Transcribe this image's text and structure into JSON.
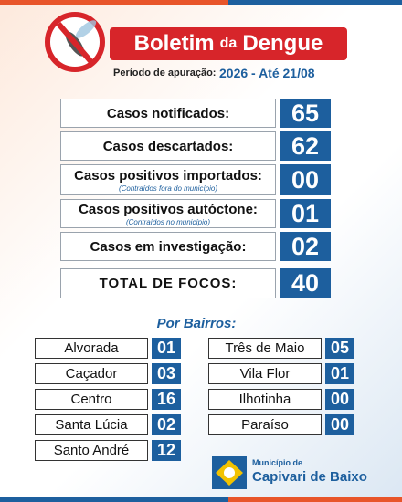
{
  "header": {
    "title_main": "Boletim",
    "title_connector": "da",
    "title_end": "Dengue",
    "period_label": "Período de apuração:",
    "period_value": "2026 - Até 21/08"
  },
  "summary": [
    {
      "label": "Casos notificados:",
      "value": "65"
    },
    {
      "label": "Casos descartados:",
      "value": "62"
    },
    {
      "label": "Casos positivos importados:",
      "note": "(Contraídos fora do município)",
      "value": "00"
    },
    {
      "label": "Casos positivos autóctone:",
      "note": "(Contraídos no município)",
      "value": "01"
    },
    {
      "label": "Casos em investigação:",
      "value": "02"
    },
    {
      "label": "TOTAL DE FOCOS:",
      "value": "40"
    }
  ],
  "neighborhoods_title": "Por Bairros:",
  "neighborhoods_left": [
    {
      "label": "Alvorada",
      "value": "01"
    },
    {
      "label": "Caçador",
      "value": "03"
    },
    {
      "label": "Centro",
      "value": "16"
    },
    {
      "label": "Santa Lúcia",
      "value": "02"
    },
    {
      "label": "Santo André",
      "value": "12"
    }
  ],
  "neighborhoods_right": [
    {
      "label": "Três de Maio",
      "value": "05"
    },
    {
      "label": "Vila Flor",
      "value": "01"
    },
    {
      "label": "Ilhotinha",
      "value": "00"
    },
    {
      "label": "Paraíso",
      "value": "00"
    }
  ],
  "logo": {
    "line1": "Município de",
    "line2": "Capivari de Baixo"
  }
}
